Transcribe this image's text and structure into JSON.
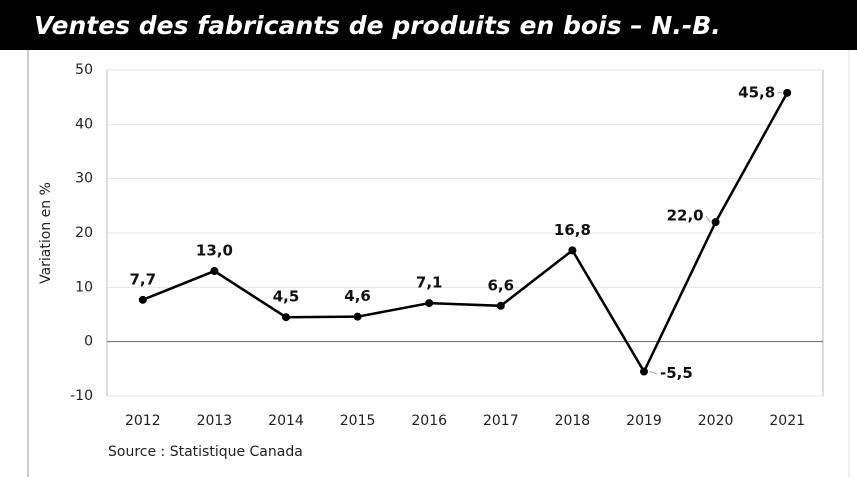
{
  "chart_data": {
    "type": "line",
    "title": "Ventes des fabricants de produits en bois – N.-B.",
    "y_label": "Variation en %",
    "source": "Source : Statistique Canada",
    "categories": [
      "2012",
      "2013",
      "2014",
      "2015",
      "2016",
      "2017",
      "2018",
      "2019",
      "2020",
      "2021"
    ],
    "series": [
      {
        "name": "Variation",
        "color": "#000000",
        "values": [
          7.7,
          13.0,
          4.5,
          4.6,
          7.1,
          6.6,
          16.8,
          -5.5,
          22.0,
          45.8
        ],
        "value_labels": [
          "7,7",
          "13,0",
          "4,5",
          "4,6",
          "7,1",
          "6,6",
          "16,8",
          "-5,5",
          "22,0",
          "45,8"
        ]
      }
    ],
    "ylim": [
      -10,
      50
    ],
    "yticks": [
      -10,
      0,
      10,
      20,
      30,
      40,
      50
    ],
    "grid": true
  }
}
